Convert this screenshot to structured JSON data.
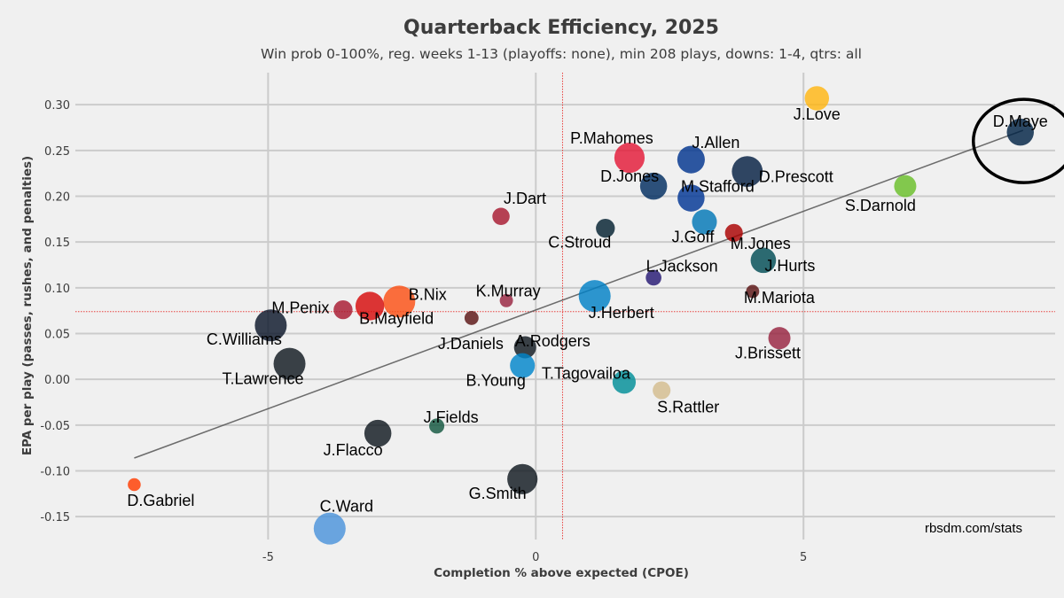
{
  "chart_data": {
    "type": "scatter",
    "title": "Quarterback Efficiency, 2025",
    "subtitle": "Win prob 0-100%, reg. weeks 1-13 (playoffs: none), min 208 plays, downs: 1-4, qtrs: all",
    "xlabel": "Completion % above expected (CPOE)",
    "ylabel": "EPA per play (passes, rushes, and penalties)",
    "credit": "rbsdm.com/stats",
    "xlim": [
      -8.6,
      9.7
    ],
    "ylim": [
      -0.175,
      0.335
    ],
    "x_ticks": [
      -5,
      0,
      5
    ],
    "x_tick_labels": [
      "-5",
      "0",
      "5"
    ],
    "y_ticks": [
      -0.15,
      -0.1,
      -0.05,
      0.0,
      0.05,
      0.1,
      0.15,
      0.2,
      0.25,
      0.3
    ],
    "y_tick_labels": [
      "-0.15",
      "-0.10",
      "-0.05",
      "0.00",
      "0.05",
      "0.10",
      "0.15",
      "0.20",
      "0.25",
      "0.30"
    ],
    "grid": true,
    "mean_x": 0.5,
    "mean_y": 0.074,
    "trend_line": [
      [
        -7.5,
        -0.086
      ],
      [
        9.1,
        0.272
      ]
    ],
    "highlight": "D.Maye",
    "points": [
      {
        "name": "J.Love",
        "x": 5.25,
        "y": 0.307,
        "plays": 420,
        "color": "#FFB612"
      },
      {
        "name": "D.Maye",
        "x": 9.05,
        "y": 0.27,
        "plays": 470,
        "color": "#002244"
      },
      {
        "name": "P.Mahomes",
        "x": 1.75,
        "y": 0.242,
        "plays": 530,
        "color": "#E31837"
      },
      {
        "name": "J.Allen",
        "x": 2.9,
        "y": 0.24,
        "plays": 480,
        "color": "#00338D"
      },
      {
        "name": "D.Prescott",
        "x": 3.95,
        "y": 0.227,
        "plays": 540,
        "color": "#041E42"
      },
      {
        "name": "D.Jones",
        "x": 2.2,
        "y": 0.211,
        "plays": 470,
        "color": "#002C5F"
      },
      {
        "name": "S.Darnold",
        "x": 6.9,
        "y": 0.211,
        "plays": 380,
        "color": "#69BE28"
      },
      {
        "name": "M.Stafford",
        "x": 2.9,
        "y": 0.198,
        "plays": 470,
        "color": "#003594"
      },
      {
        "name": "J.Dart",
        "x": -0.65,
        "y": 0.178,
        "plays": 290,
        "color": "#A71930"
      },
      {
        "name": "C.Stroud",
        "x": 1.3,
        "y": 0.165,
        "plays": 320,
        "color": "#03202F"
      },
      {
        "name": "J.Goff",
        "x": 3.15,
        "y": 0.172,
        "plays": 430,
        "color": "#0076B6"
      },
      {
        "name": "M.Jones",
        "x": 3.7,
        "y": 0.16,
        "plays": 300,
        "color": "#AA0000"
      },
      {
        "name": "J.Hurts",
        "x": 4.25,
        "y": 0.13,
        "plays": 440,
        "color": "#004C54"
      },
      {
        "name": "L.Jackson",
        "x": 2.2,
        "y": 0.111,
        "plays": 260,
        "color": "#241773"
      },
      {
        "name": "M.Mariota",
        "x": 4.05,
        "y": 0.096,
        "plays": 215,
        "color": "#5A1414"
      },
      {
        "name": "K.Murray",
        "x": -0.55,
        "y": 0.086,
        "plays": 215,
        "color": "#97233F"
      },
      {
        "name": "J.Herbert",
        "x": 1.1,
        "y": 0.091,
        "plays": 560,
        "color": "#0080C6"
      },
      {
        "name": "B.Nix",
        "x": -2.55,
        "y": 0.085,
        "plays": 560,
        "color": "#FB4F14"
      },
      {
        "name": "B.Mayfield",
        "x": -3.1,
        "y": 0.08,
        "plays": 500,
        "color": "#D50A0A"
      },
      {
        "name": "M.Penix",
        "x": -3.6,
        "y": 0.076,
        "plays": 320,
        "color": "#A71930"
      },
      {
        "name": "J.Daniels",
        "x": -1.2,
        "y": 0.067,
        "plays": 230,
        "color": "#5A1414"
      },
      {
        "name": "C.Williams",
        "x": -4.95,
        "y": 0.059,
        "plays": 560,
        "color": "#0B162A"
      },
      {
        "name": "J.Brissett",
        "x": 4.55,
        "y": 0.045,
        "plays": 380,
        "color": "#97233F"
      },
      {
        "name": "A.Rodgers",
        "x": -0.2,
        "y": 0.035,
        "plays": 380,
        "color": "#101820"
      },
      {
        "name": "T.Lawrence",
        "x": -4.6,
        "y": 0.017,
        "plays": 560,
        "color": "#101820"
      },
      {
        "name": "B.Young",
        "x": -0.25,
        "y": 0.015,
        "plays": 430,
        "color": "#0085CA"
      },
      {
        "name": "T.Tagovailoa",
        "x": 1.65,
        "y": -0.003,
        "plays": 400,
        "color": "#008E97"
      },
      {
        "name": "S.Rattler",
        "x": 2.35,
        "y": -0.012,
        "plays": 300,
        "color": "#D3BC8D"
      },
      {
        "name": "J.Fields",
        "x": -1.85,
        "y": -0.051,
        "plays": 250,
        "color": "#125740"
      },
      {
        "name": "J.Flacco",
        "x": -2.95,
        "y": -0.059,
        "plays": 470,
        "color": "#101820"
      },
      {
        "name": "G.Smith",
        "x": -0.25,
        "y": -0.109,
        "plays": 530,
        "color": "#101820"
      },
      {
        "name": "D.Gabriel",
        "x": -7.5,
        "y": -0.115,
        "plays": 210,
        "color": "#FF3C00"
      },
      {
        "name": "C.Ward",
        "x": -3.85,
        "y": -0.163,
        "plays": 560,
        "color": "#4B92DB"
      }
    ]
  }
}
